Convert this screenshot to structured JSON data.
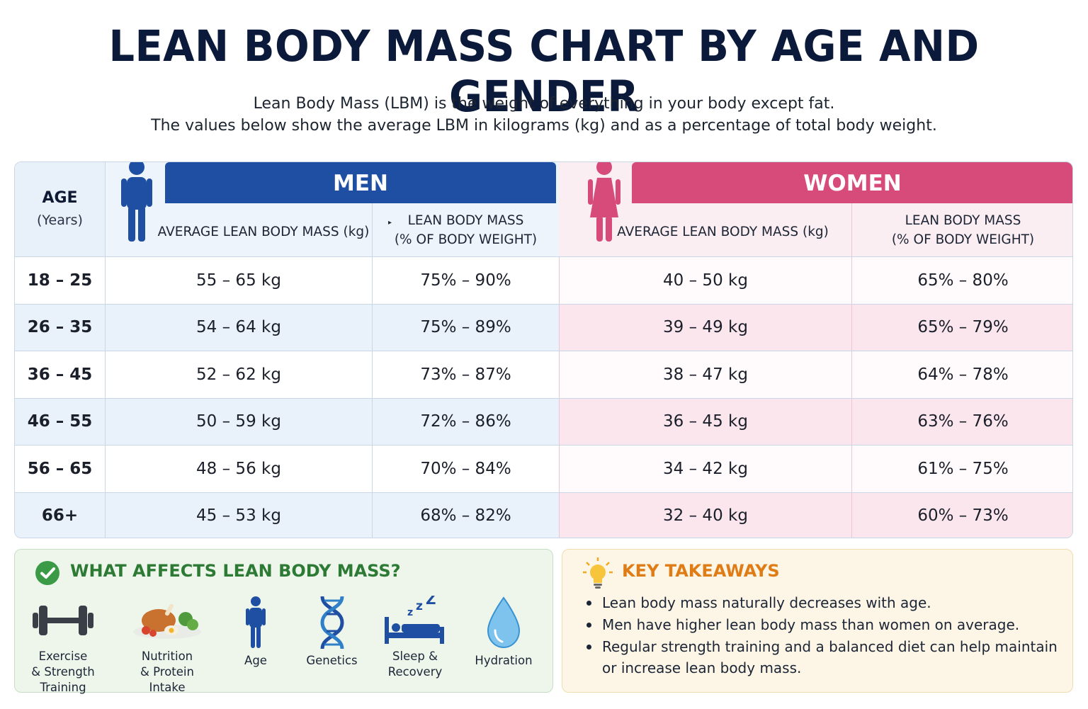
{
  "title": "LEAN BODY MASS CHART BY AGE AND GENDER",
  "subtitle_line1": "Lean Body Mass (LBM) is the weight of everything in your body except fat.",
  "subtitle_line2": "The values below show the average LBM in kilograms (kg) and as a percentage of total body weight.",
  "colors": {
    "men": "#1f4fa3",
    "women": "#d64b79",
    "navy": "#0b1a3a",
    "green": "#2d7a34",
    "orange": "#e07c16"
  },
  "table": {
    "age_header": "AGE",
    "age_subheader": "(Years)",
    "men_label": "MEN",
    "women_label": "WOMEN",
    "kg_header": "AVERAGE LEAN BODY MASS (kg)",
    "pct_header_line1": "LEAN BODY MASS",
    "pct_header_line2": "(% OF BODY WEIGHT)",
    "rows": [
      {
        "age": "18 – 25",
        "men_kg": "55 – 65 kg",
        "men_pct": "75% – 90%",
        "women_kg": "40 – 50 kg",
        "women_pct": "65% – 80%"
      },
      {
        "age": "26 – 35",
        "men_kg": "54 – 64 kg",
        "men_pct": "75% – 89%",
        "women_kg": "39 – 49 kg",
        "women_pct": "65% – 79%"
      },
      {
        "age": "36 – 45",
        "men_kg": "52 – 62 kg",
        "men_pct": "73% – 87%",
        "women_kg": "38 – 47 kg",
        "women_pct": "64% – 78%"
      },
      {
        "age": "46 – 55",
        "men_kg": "50 – 59 kg",
        "men_pct": "72% – 86%",
        "women_kg": "36 – 45 kg",
        "women_pct": "63% – 76%"
      },
      {
        "age": "56 – 65",
        "men_kg": "48 – 56 kg",
        "men_pct": "70% – 84%",
        "women_kg": "34 – 42 kg",
        "women_pct": "61% – 75%"
      },
      {
        "age": "66+",
        "men_kg": "45 – 53 kg",
        "men_pct": "68% – 82%",
        "women_kg": "32 – 40 kg",
        "women_pct": "60% – 73%"
      }
    ]
  },
  "affects": {
    "title": "WHAT AFFECTS LEAN BODY MASS?",
    "icon": "check-circle-icon",
    "factors": [
      {
        "icon": "dumbbell-icon",
        "line1": "Exercise",
        "line2": "& Strength",
        "line3": "Training"
      },
      {
        "icon": "food-icon",
        "line1": "Nutrition",
        "line2": "& Protein",
        "line3": "Intake"
      },
      {
        "icon": "person-icon",
        "line1": "Age",
        "line2": "",
        "line3": ""
      },
      {
        "icon": "dna-icon",
        "line1": "Genetics",
        "line2": "",
        "line3": ""
      },
      {
        "icon": "sleep-icon",
        "line1": "Sleep &",
        "line2": "Recovery",
        "line3": ""
      },
      {
        "icon": "water-drop-icon",
        "line1": "Hydration",
        "line2": "",
        "line3": ""
      }
    ]
  },
  "takeaways": {
    "title": "KEY TAKEAWAYS",
    "icon": "lightbulb-icon",
    "items": [
      "Lean body mass naturally decreases with age.",
      "Men have higher lean body mass than women on average.",
      "Regular strength training and a balanced diet can help maintain or increase lean body mass."
    ]
  }
}
